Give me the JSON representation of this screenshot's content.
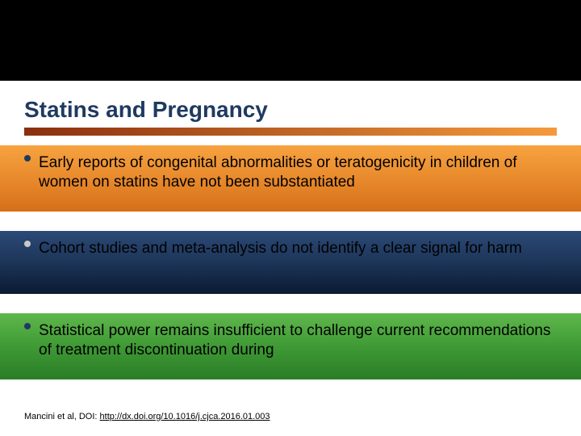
{
  "title": {
    "text": "Statins and Pregnancy",
    "color": "#1f3a60",
    "fontsize": 28,
    "fontweight": "bold",
    "underline_gradient": {
      "from": "#8a2f0f",
      "to": "#f59a3b"
    },
    "underline_height": 10
  },
  "topbar": {
    "color": "#000000",
    "height": 100
  },
  "bullets": [
    {
      "text": "Early reports of congenital abnormalities or teratogenicity in children of women on statins have not been substantiated",
      "band_gradient": {
        "from": "#f7a340",
        "via": "#e88a2d",
        "to": "#d66f18"
      },
      "dot_color": "#1f3a60",
      "text_color": "#000000",
      "fontsize": 19
    },
    {
      "text": "Cohort studies and meta-analysis do not identify a clear signal for harm",
      "band_gradient": {
        "from": "#2b4a78",
        "via": "#1d3558",
        "to": "#0a1a33"
      },
      "dot_color": "#c9c9c9",
      "text_color": "#000000",
      "fontsize": 19
    },
    {
      "text": "Statistical power remains insufficient to challenge current recommendations of treatment discontinuation during",
      "band_gradient": {
        "from": "#5fb84c",
        "via": "#3f9a35",
        "to": "#2a7d26"
      },
      "dot_color": "#1f3a60",
      "text_color": "#000000",
      "fontsize": 19
    }
  ],
  "citation": {
    "prefix": "Mancini et al, DOI: ",
    "link": "http://dx.doi.org/10.1016/j.cjca.2016.01.003",
    "color": "#000000",
    "fontsize": 11
  },
  "background_color": "#ffffff"
}
